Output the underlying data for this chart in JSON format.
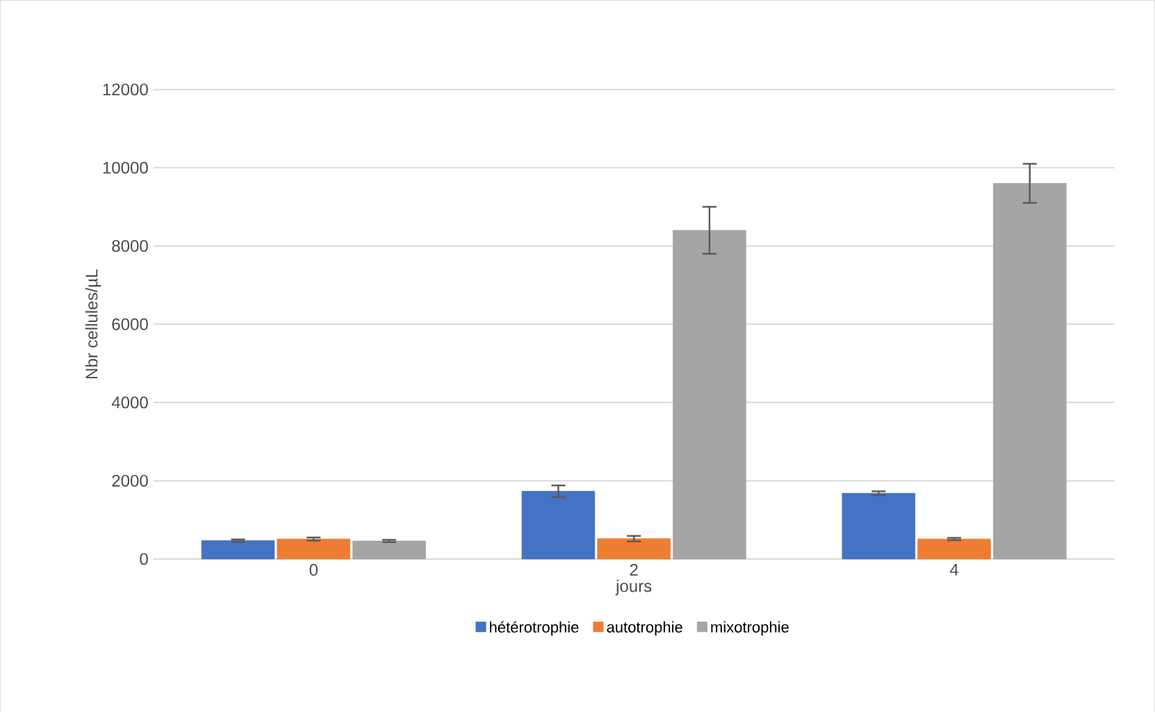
{
  "chart_data": {
    "type": "bar",
    "xlabel": "jours",
    "ylabel": "Nbr cellules/µL",
    "categories": [
      "0",
      "2",
      "4"
    ],
    "series": [
      {
        "name": "hétérotrophie",
        "color": "#4472c4",
        "values": [
          470,
          1730,
          1680
        ],
        "errors": [
          30,
          150,
          50
        ]
      },
      {
        "name": "autotrophie",
        "color": "#ed7d31",
        "values": [
          510,
          520,
          510
        ],
        "errors": [
          40,
          70,
          30
        ]
      },
      {
        "name": "mixotrophie",
        "color": "#a5a5a5",
        "values": [
          460,
          8400,
          9600
        ],
        "errors": [
          30,
          600,
          500
        ]
      }
    ],
    "ylim": [
      0,
      12000
    ],
    "yticks": [
      0,
      2000,
      4000,
      6000,
      8000,
      10000,
      12000
    ],
    "grid": "y",
    "legend": "bottom"
  }
}
